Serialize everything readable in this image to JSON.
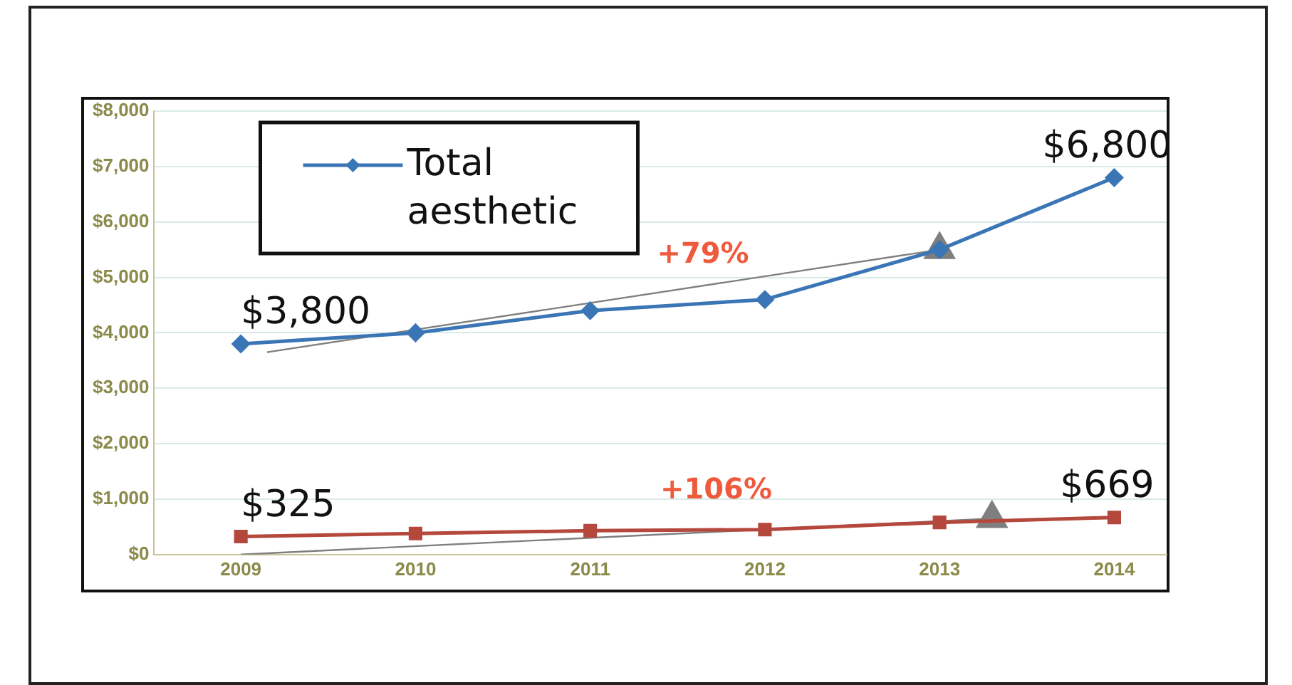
{
  "chart_data": {
    "type": "line",
    "x": [
      2009,
      2010,
      2011,
      2012,
      2013,
      2014
    ],
    "xlim": [
      2008.5,
      2014.3
    ],
    "xticks": [
      2009,
      2010,
      2011,
      2012,
      2013,
      2014
    ],
    "ylim": [
      0,
      8000
    ],
    "yticks": [
      {
        "value": 0,
        "label": "$0"
      },
      {
        "value": 1000,
        "label": "$1,000"
      },
      {
        "value": 2000,
        "label": "$2,000"
      },
      {
        "value": 3000,
        "label": "$3,000"
      },
      {
        "value": 4000,
        "label": "$4,000"
      },
      {
        "value": 5000,
        "label": "$5,000"
      },
      {
        "value": 6000,
        "label": "$6,000"
      },
      {
        "value": 7000,
        "label": "$7,000"
      },
      {
        "value": 8000,
        "label": "$8,000"
      }
    ],
    "series": [
      {
        "name": "Total aesthetic",
        "color": "#3a75b5",
        "marker": "diamond",
        "values": [
          3800,
          4000,
          4400,
          4600,
          5500,
          6800
        ],
        "value_labels": [
          "$3,800",
          null,
          null,
          null,
          null,
          "$6,800"
        ]
      },
      {
        "color": "#b5483c",
        "marker": "square",
        "values": [
          325,
          380,
          430,
          450,
          580,
          669
        ],
        "value_labels": [
          "$325",
          null,
          null,
          null,
          null,
          "$669"
        ]
      },
      {
        "color": "#7f7f7f",
        "marker": "triangle",
        "x": [
          2009.15,
          2013
        ],
        "values": [
          3650,
          5500
        ]
      },
      {
        "color": "#7f7f7f",
        "marker": "triangle",
        "x": [
          2009,
          2013.3
        ],
        "values": [
          0,
          650
        ]
      }
    ],
    "annotations": [
      "+79%",
      "+106%"
    ],
    "grid": "y",
    "legend": "top left",
    "line_style": "solid"
  }
}
